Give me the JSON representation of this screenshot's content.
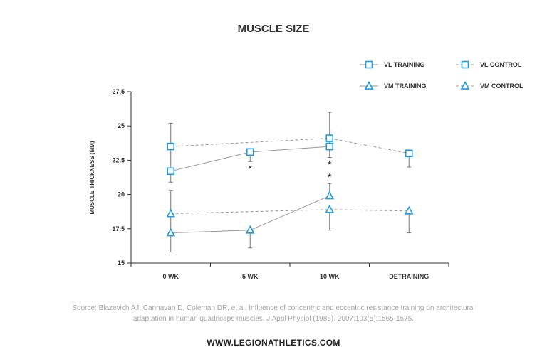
{
  "chart_data": {
    "type": "line",
    "title": "MUSCLE SIZE",
    "ylabel": "MUSCLE THICKNESS (MM)",
    "xlabel": "",
    "categories": [
      "0 WK",
      "5 WK",
      "10 WK",
      "DETRAINING"
    ],
    "ylim": [
      15,
      27.5
    ],
    "yticks": [
      "15",
      "17.5",
      "20",
      "22.5",
      "25",
      "27.5"
    ],
    "grid": false,
    "legend_position": "top-right",
    "series": [
      {
        "name": "VL TRAINING",
        "marker": "square",
        "line_style": "solid",
        "values": [
          21.7,
          23.1,
          23.5,
          null
        ],
        "error_low": [
          20.9,
          22.4,
          22.7,
          null
        ],
        "error_high": [
          25.2,
          23.1,
          26.0,
          null
        ],
        "significance": [
          false,
          true,
          true,
          false
        ]
      },
      {
        "name": "VL CONTROL",
        "marker": "square",
        "line_style": "dashed",
        "values": [
          23.5,
          null,
          24.1,
          23.0
        ],
        "error_low": [
          null,
          null,
          null,
          22.0
        ],
        "error_high": [
          null,
          null,
          null,
          23.0
        ]
      },
      {
        "name": "VM TRAINING",
        "marker": "triangle",
        "line_style": "solid",
        "values": [
          17.2,
          17.4,
          19.9,
          null
        ],
        "error_low": [
          15.8,
          16.1,
          null,
          null
        ],
        "error_high": [
          20.3,
          17.4,
          20.8,
          null
        ],
        "significance": [
          false,
          false,
          true,
          false
        ]
      },
      {
        "name": "VM CONTROL",
        "marker": "triangle",
        "line_style": "dashed",
        "values": [
          18.6,
          null,
          18.9,
          18.8
        ],
        "error_low": [
          null,
          null,
          17.4,
          17.2
        ],
        "error_high": [
          null,
          null,
          null,
          18.8
        ]
      }
    ],
    "significance_marker": "*"
  },
  "source_text": "Source: Blazevich AJ, Cannavan D, Coleman DR, et al. Influence of concentric and eccentric resistance training on architectural adaptation in human quadriceps muscles. J Appl Physiol (1985). 2007;103(5):1565-1575.",
  "website": "WWW.LEGIONATHLETICS.COM",
  "colors": {
    "marker": "#1e9be6",
    "line": "#999999",
    "errorbar": "#777777",
    "axis": "#333333",
    "text": "#333333",
    "source": "#a5a5a5"
  }
}
